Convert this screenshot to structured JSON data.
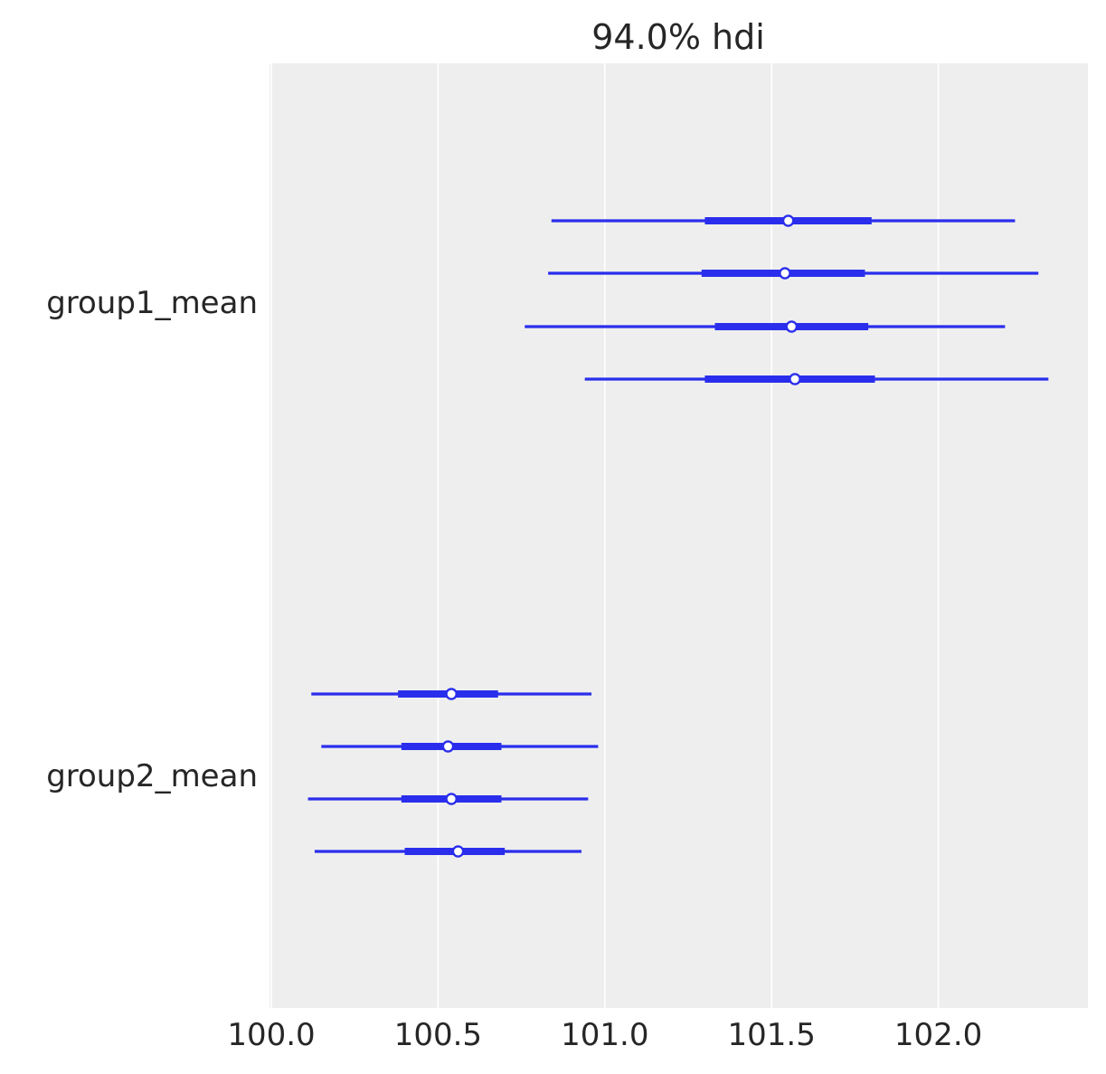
{
  "chart_data": {
    "type": "forest",
    "title": "94.0% hdi",
    "xlabel": "",
    "ylabel": "",
    "xlim": [
      99.99,
      102.45
    ],
    "x_ticks": [
      100.0,
      100.5,
      101.0,
      101.5,
      102.0
    ],
    "x_tick_labels": [
      "100.0",
      "100.5",
      "101.0",
      "101.5",
      "102.0"
    ],
    "grid": "vertical",
    "colors": {
      "line": "#2a2eec",
      "marker_fill": "#ffffff",
      "panel_bg": "#eeeeee",
      "grid": "#ffffff",
      "text": "#262626"
    },
    "variables": [
      {
        "name": "group1_mean",
        "chains": [
          {
            "hdi_94": [
              100.84,
              102.23
            ],
            "iqr": [
              101.3,
              101.8
            ],
            "mean": 101.55
          },
          {
            "hdi_94": [
              100.83,
              102.3
            ],
            "iqr": [
              101.29,
              101.78
            ],
            "mean": 101.54
          },
          {
            "hdi_94": [
              100.76,
              102.2
            ],
            "iqr": [
              101.33,
              101.79
            ],
            "mean": 101.56
          },
          {
            "hdi_94": [
              100.94,
              102.33
            ],
            "iqr": [
              101.3,
              101.81
            ],
            "mean": 101.57
          }
        ]
      },
      {
        "name": "group2_mean",
        "chains": [
          {
            "hdi_94": [
              100.12,
              100.96
            ],
            "iqr": [
              100.38,
              100.68
            ],
            "mean": 100.54
          },
          {
            "hdi_94": [
              100.15,
              100.98
            ],
            "iqr": [
              100.39,
              100.69
            ],
            "mean": 100.53
          },
          {
            "hdi_94": [
              100.11,
              100.95
            ],
            "iqr": [
              100.39,
              100.69
            ],
            "mean": 100.54
          },
          {
            "hdi_94": [
              100.13,
              100.93
            ],
            "iqr": [
              100.4,
              100.7
            ],
            "mean": 100.56
          }
        ]
      }
    ]
  }
}
